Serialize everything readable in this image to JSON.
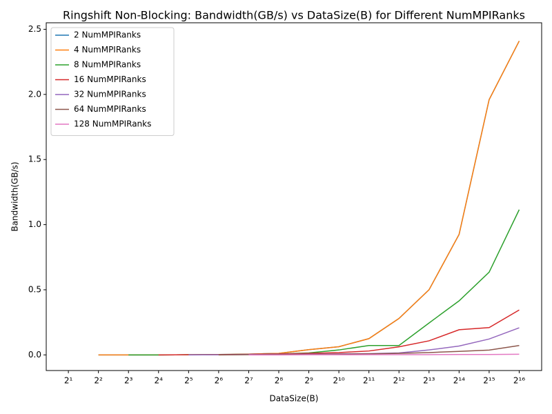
{
  "chart_data": {
    "type": "line",
    "title": "Ringshift Non-Blocking: Bandwidth(GB/s) vs DataSize(B) for Different NumMPIRanks",
    "x_label": "DataSize(B)",
    "y_label": "Bandwidth(GB/s)",
    "xscale": "log",
    "xlim": [
      1.2,
      110000
    ],
    "xticks": [
      {
        "value": 2,
        "label": "2¹"
      },
      {
        "value": 4,
        "label": "2²"
      },
      {
        "value": 8,
        "label": "2³"
      },
      {
        "value": 16,
        "label": "2⁴"
      },
      {
        "value": 32,
        "label": "2⁵"
      },
      {
        "value": 64,
        "label": "2⁶"
      },
      {
        "value": 128,
        "label": "2⁷"
      },
      {
        "value": 256,
        "label": "2⁸"
      },
      {
        "value": 512,
        "label": "2⁹"
      },
      {
        "value": 1024,
        "label": "2¹⁰"
      },
      {
        "value": 2048,
        "label": "2¹¹"
      },
      {
        "value": 4096,
        "label": "2¹²"
      },
      {
        "value": 8192,
        "label": "2¹³"
      },
      {
        "value": 16384,
        "label": "2¹⁴"
      },
      {
        "value": 32768,
        "label": "2¹⁵"
      },
      {
        "value": 65536,
        "label": "2¹⁶"
      }
    ],
    "ylim": [
      -0.12,
      2.55
    ],
    "yticks": [
      {
        "value": 0,
        "label": "0.0"
      },
      {
        "value": 0.5,
        "label": "0.5"
      },
      {
        "value": 1,
        "label": "1.0"
      },
      {
        "value": 1.5,
        "label": "1.5"
      },
      {
        "value": 2,
        "label": "2.0"
      },
      {
        "value": 2.5,
        "label": "2.5"
      }
    ],
    "grid": false,
    "legend": "upper-left",
    "x": [
      4,
      8,
      16,
      32,
      64,
      128,
      256,
      512,
      1024,
      2048,
      4096,
      8192,
      16384,
      32768,
      65536
    ],
    "series": [
      {
        "name": "2 NumMPIRanks",
        "color": "#1f77b4",
        "values": [
          0,
          0,
          0,
          0.001,
          0.003,
          0.006,
          0.012,
          0.04,
          0.063,
          0.125,
          0.28,
          0.5,
          0.925,
          1.96,
          2.41
        ]
      },
      {
        "name": "4 NumMPIRanks",
        "color": "#ff7f0e",
        "values": [
          0,
          0,
          0,
          0.001,
          0.003,
          0.006,
          0.012,
          0.04,
          0.063,
          0.125,
          0.28,
          0.5,
          0.925,
          1.96,
          2.41
        ]
      },
      {
        "name": "8 NumMPIRanks",
        "color": "#2ca02c",
        "values": [
          null,
          0,
          0,
          0.001,
          0.002,
          0.005,
          0.008,
          0.015,
          0.038,
          0.072,
          0.072,
          0.245,
          0.415,
          0.635,
          1.115
        ]
      },
      {
        "name": "16 NumMPIRanks",
        "color": "#d62728",
        "values": [
          null,
          null,
          0,
          0.001,
          0.002,
          0.005,
          0.008,
          0.012,
          0.018,
          0.03,
          0.062,
          0.108,
          0.193,
          0.21,
          0.345
        ]
      },
      {
        "name": "32 NumMPIRanks",
        "color": "#9467bd",
        "values": [
          null,
          null,
          null,
          0,
          0.001,
          0.003,
          0.005,
          0.006,
          0.008,
          0.01,
          0.015,
          0.038,
          0.068,
          0.122,
          0.208
        ]
      },
      {
        "name": "64 NumMPIRanks",
        "color": "#8c564b",
        "values": [
          null,
          null,
          null,
          null,
          0,
          0.002,
          0.003,
          0.004,
          0.006,
          0.008,
          0.012,
          0.018,
          0.027,
          0.037,
          0.072
        ]
      },
      {
        "name": "128 NumMPIRanks",
        "color": "#e377c2",
        "values": [
          null,
          null,
          null,
          null,
          null,
          0,
          0,
          0.001,
          0.001,
          0.002,
          0.002,
          0.002,
          0.003,
          0.003,
          0.005
        ]
      }
    ]
  }
}
